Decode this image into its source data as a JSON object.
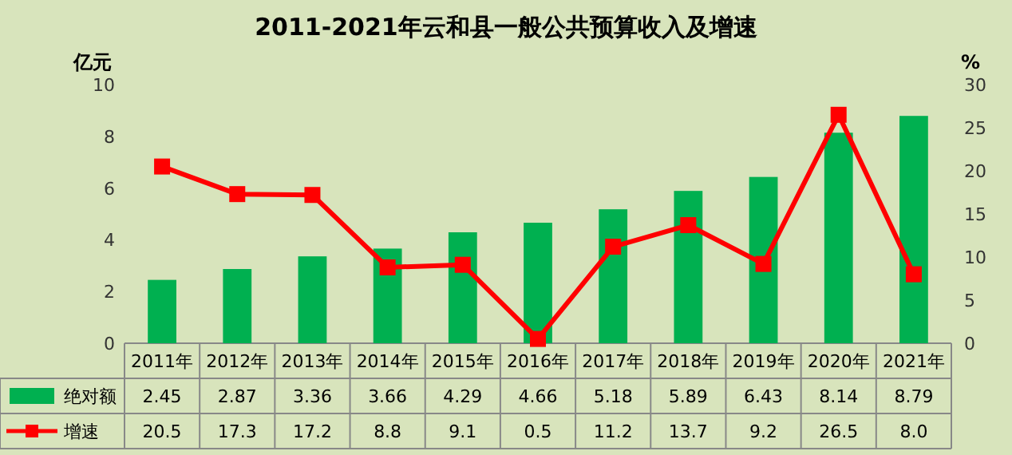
{
  "chart_data": {
    "type": "bar",
    "title": "2011-2021年云和县一般公共预算收入及增速",
    "ylabel": "亿元",
    "y2label": "%",
    "categories": [
      "2011年",
      "2012年",
      "2013年",
      "2014年",
      "2015年",
      "2016年",
      "2017年",
      "2018年",
      "2019年",
      "2020年",
      "2021年"
    ],
    "series": [
      {
        "name": "绝对额",
        "color": "#00b050",
        "values": [
          2.45,
          2.87,
          3.36,
          3.66,
          4.29,
          4.66,
          5.18,
          5.89,
          6.43,
          8.14,
          8.79
        ],
        "value_labels": [
          "2.45",
          "2.87",
          "3.36",
          "3.66",
          "4.29",
          "4.66",
          "5.18",
          "5.89",
          "6.43",
          "8.14",
          "8.79"
        ]
      },
      {
        "name": "增速",
        "type": "line",
        "axis": "y2",
        "color": "#ff0000",
        "values": [
          20.5,
          17.3,
          17.2,
          8.8,
          9.1,
          0.5,
          11.2,
          13.7,
          9.2,
          26.5,
          8.0
        ],
        "value_labels": [
          "20.5",
          "17.3",
          "17.2",
          "8.8",
          "9.1",
          "0.5",
          "11.2",
          "13.7",
          "9.2",
          "26.5",
          "8.0"
        ]
      }
    ],
    "ylim": [
      0,
      10
    ],
    "yticks": [
      0,
      2,
      4,
      6,
      8,
      10
    ],
    "y2lim": [
      0,
      30
    ],
    "y2ticks": [
      0,
      5,
      10,
      15,
      20,
      25,
      30
    ],
    "legend": "bottom",
    "marker": "square"
  }
}
